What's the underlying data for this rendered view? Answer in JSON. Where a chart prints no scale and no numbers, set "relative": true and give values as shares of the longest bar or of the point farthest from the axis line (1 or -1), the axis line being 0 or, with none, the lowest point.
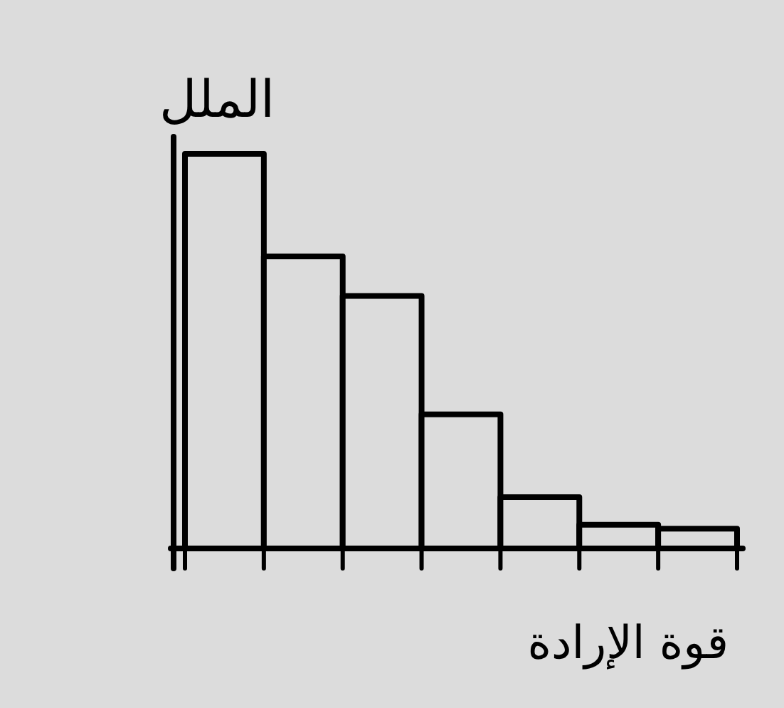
{
  "chart_data": {
    "type": "bar",
    "relative": true,
    "xlabel": "قوة الإرادة",
    "ylabel": "الملل",
    "categories": [
      null,
      null,
      null,
      null,
      null,
      null,
      null
    ],
    "values": [
      1,
      0.74,
      0.64,
      0.34,
      0.13,
      0.06,
      0.05
    ],
    "color": "#dcdcdc",
    "grid": false
  }
}
